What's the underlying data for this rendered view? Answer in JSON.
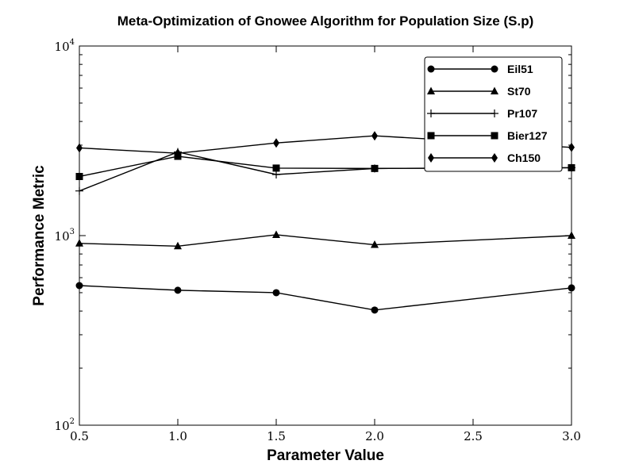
{
  "chart_data": {
    "type": "line",
    "title": "Meta-Optimization of Gnowee Algorithm for Population Size (S.p)",
    "xlabel": "Parameter Value",
    "ylabel": "Performance Metric",
    "xlim": [
      0.5,
      3.0
    ],
    "ylim": [
      100,
      10000
    ],
    "yscale": "log",
    "x_ticks": [
      "0.5",
      "1.0",
      "1.5",
      "2.0",
      "2.5",
      "3.0"
    ],
    "y_ticks": [
      {
        "base": "10",
        "exp": "2",
        "value": 100
      },
      {
        "base": "10",
        "exp": "3",
        "value": 1000
      },
      {
        "base": "10",
        "exp": "4",
        "value": 10000
      }
    ],
    "legend_position": "top-right",
    "grid": false,
    "series": [
      {
        "name": "Eil51",
        "marker": "circle",
        "x": [
          0.5,
          1.0,
          1.5,
          2.0,
          3.0
        ],
        "y": [
          545,
          515,
          500,
          405,
          530
        ]
      },
      {
        "name": "St70",
        "marker": "triangle",
        "x": [
          0.5,
          1.0,
          1.5,
          2.0,
          3.0
        ],
        "y": [
          910,
          880,
          1010,
          895,
          1000
        ]
      },
      {
        "name": "Pr107",
        "marker": "plus",
        "x": [
          0.5,
          1.0,
          1.5,
          2.0,
          3.0
        ],
        "y": [
          1720,
          2760,
          2100,
          2260,
          2280
        ]
      },
      {
        "name": "Bier127",
        "marker": "square",
        "x": [
          0.5,
          1.0,
          1.5,
          2.0,
          3.0
        ],
        "y": [
          2050,
          2620,
          2270,
          2260,
          2280
        ]
      },
      {
        "name": "Ch150",
        "marker": "diamond",
        "x": [
          0.5,
          1.0,
          1.5,
          2.0,
          3.0
        ],
        "y": [
          2900,
          2720,
          3080,
          3360,
          2920
        ]
      }
    ]
  }
}
